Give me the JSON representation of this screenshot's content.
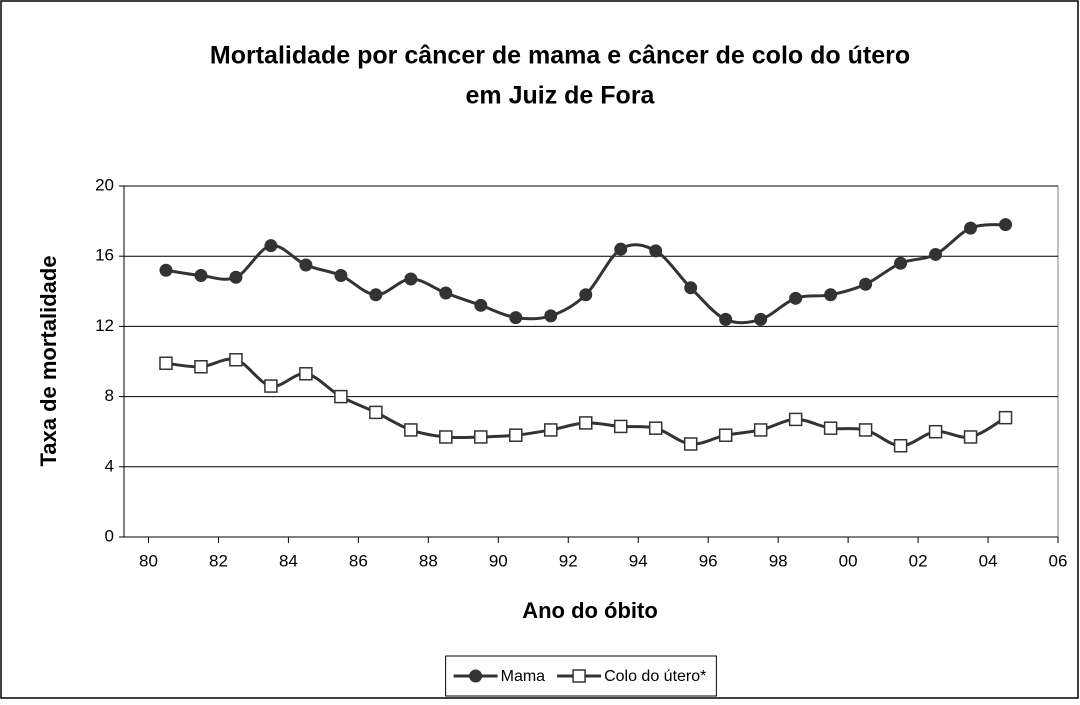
{
  "chart_data": {
    "type": "line",
    "title": [
      "Mortalidade por câncer de mama e câncer de colo do útero",
      "em Juiz de Fora"
    ],
    "x_label": "Ano do óbito",
    "y_label": "Taxa de mortalidade",
    "x": [
      1980.5,
      1981.5,
      1982.5,
      1983.5,
      1984.5,
      1985.5,
      1986.5,
      1987.5,
      1988.5,
      1989.5,
      1990.5,
      1991.5,
      1992.5,
      1993.5,
      1994.5,
      1995.5,
      1996.5,
      1997.5,
      1998.5,
      1999.5,
      2000.5,
      2001.5,
      2002.5,
      2003.5,
      2004.5
    ],
    "series": [
      {
        "name": "Mama",
        "color": "#333333",
        "marker": "circle",
        "values": [
          15.2,
          14.9,
          14.8,
          16.6,
          15.5,
          14.9,
          13.8,
          14.7,
          13.9,
          13.2,
          12.5,
          12.6,
          13.8,
          16.4,
          16.3,
          14.2,
          12.4,
          12.4,
          13.6,
          13.8,
          14.4,
          15.6,
          16.1,
          17.6,
          17.8
        ]
      },
      {
        "name": "Colo do útero*",
        "color": "#333333",
        "marker": "square",
        "values": [
          9.9,
          9.7,
          10.1,
          8.6,
          9.3,
          8.0,
          7.1,
          6.1,
          5.7,
          5.7,
          5.8,
          6.1,
          6.5,
          6.3,
          6.2,
          5.3,
          5.8,
          6.1,
          6.7,
          6.2,
          6.1,
          5.2,
          6.0,
          5.7,
          6.8
        ]
      }
    ],
    "xlim": [
      1979.3,
      2006
    ],
    "xticks": [
      {
        "value": 1980,
        "label": "80"
      },
      {
        "value": 1982,
        "label": "82"
      },
      {
        "value": 1984,
        "label": "84"
      },
      {
        "value": 1986,
        "label": "86"
      },
      {
        "value": 1988,
        "label": "88"
      },
      {
        "value": 1990,
        "label": "90"
      },
      {
        "value": 1992,
        "label": "92"
      },
      {
        "value": 1994,
        "label": "94"
      },
      {
        "value": 1996,
        "label": "96"
      },
      {
        "value": 1998,
        "label": "98"
      },
      {
        "value": 2000,
        "label": "00"
      },
      {
        "value": 2002,
        "label": "02"
      },
      {
        "value": 2004,
        "label": "04"
      },
      {
        "value": 2006,
        "label": "06"
      }
    ],
    "ylim": [
      0,
      20
    ],
    "yticks": [
      0,
      4,
      8,
      12,
      16,
      20
    ],
    "grid": true,
    "legend": "bottom"
  }
}
